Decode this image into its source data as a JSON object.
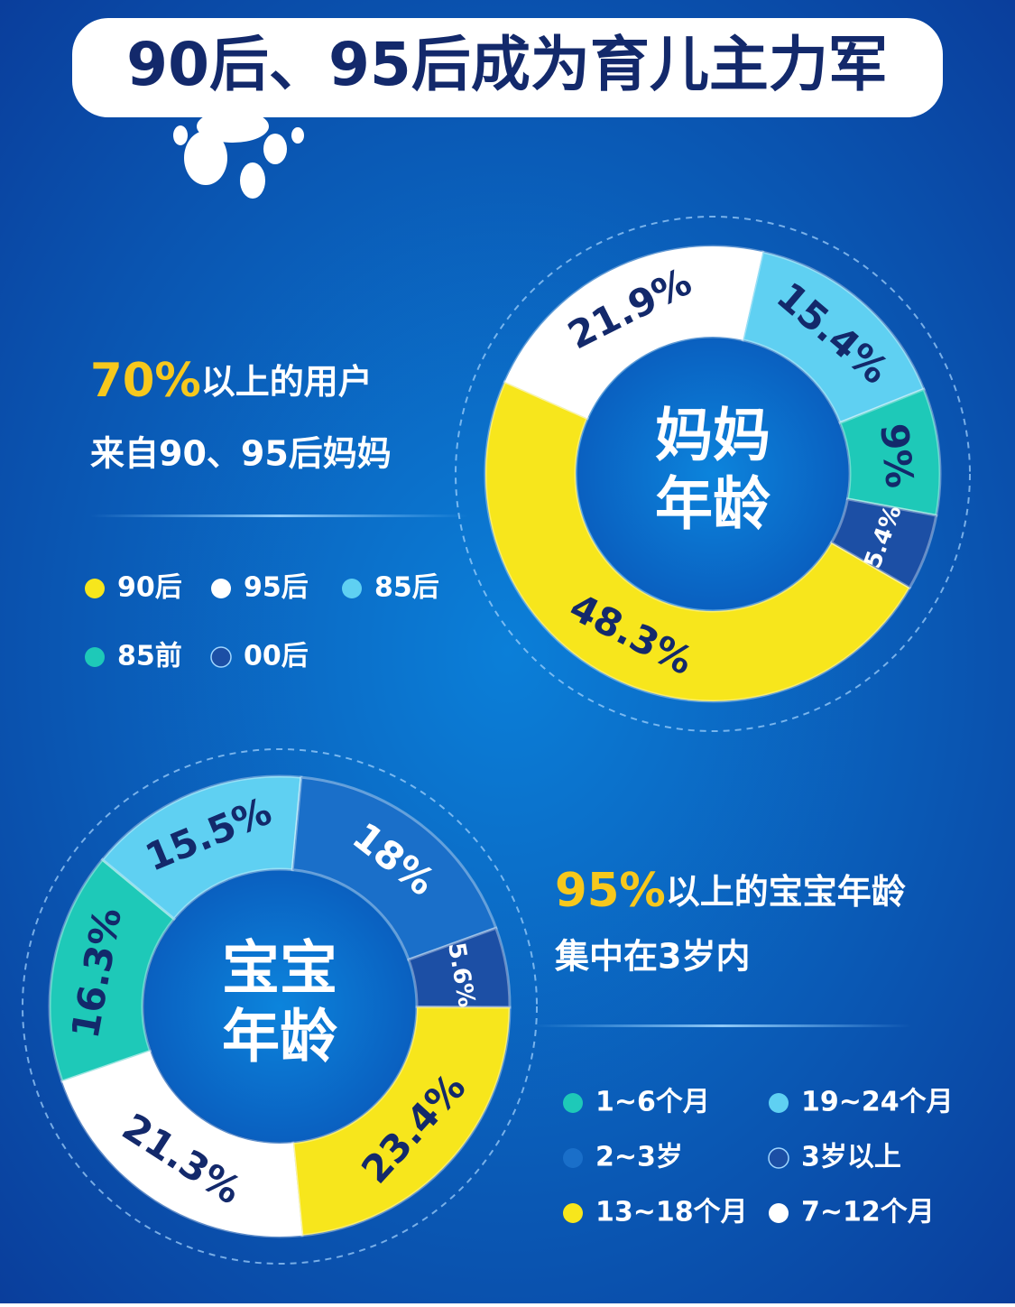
{
  "header": {
    "title": "90后、95后成为育儿主力军"
  },
  "chart_data": [
    {
      "type": "donut",
      "center_label": [
        "妈妈",
        "年龄"
      ],
      "caption_highlight": "70%",
      "caption_rest": "以上的用户",
      "caption_line2": "来自90、95后妈妈",
      "categories": [
        "90后",
        "95后",
        "85后",
        "85前",
        "00后"
      ],
      "values": [
        48.3,
        21.9,
        15.4,
        9,
        5.4
      ],
      "value_labels": [
        "48.3%",
        "21.9%",
        "15.4%",
        "9%",
        "5.4%"
      ],
      "colors": [
        "#f7e61c",
        "#ffffff",
        "#5fd0f2",
        "#1ec9b8",
        "#1c4fa5"
      ]
    },
    {
      "type": "donut",
      "center_label": [
        "宝宝",
        "年龄"
      ],
      "caption_highlight": "95%",
      "caption_rest": "以上的宝宝年龄",
      "caption_line2": "集中在3岁内",
      "categories": [
        "1~6个月",
        "19~24个月",
        "2~3岁",
        "3岁以上",
        "13~18个月",
        "7~12个月"
      ],
      "values": [
        16.3,
        15.5,
        18,
        5.6,
        23.4,
        21.3
      ],
      "value_labels": [
        "16.3%",
        "15.5%",
        "18%",
        "5.6%",
        "23.4%",
        "21.3%"
      ],
      "colors": [
        "#1ec9b8",
        "#5fd0f2",
        "#1a6fc9",
        "#1c4fa5",
        "#f7e61c",
        "#ffffff"
      ]
    }
  ]
}
